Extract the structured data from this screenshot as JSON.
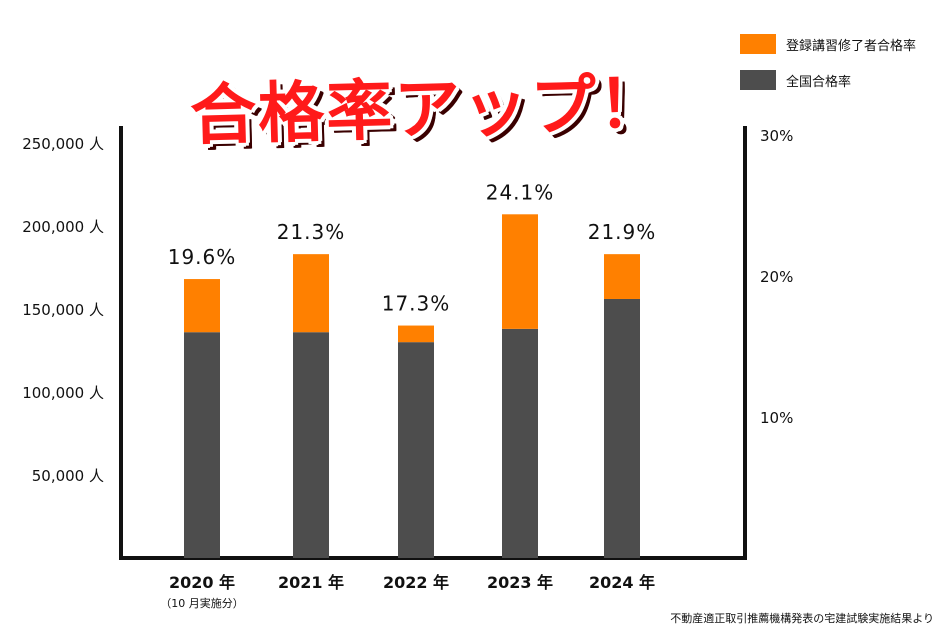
{
  "headline": "合格率アップ！",
  "source_note": "不動産適正取引推薦機構発表の宅建試験実施結果より",
  "colors": {
    "registered": "#ff8000",
    "overall": "#4d4d4d",
    "axis": "#111111"
  },
  "chart_data": {
    "type": "bar",
    "stacked": true,
    "categories": [
      "2020 年",
      "2021 年",
      "2022 年",
      "2023 年",
      "2024 年"
    ],
    "category_notes": [
      "（10 月実施分）",
      "",
      "",
      "",
      ""
    ],
    "series": [
      {
        "name": "全国合格率",
        "values": [
          136000,
          136000,
          130000,
          138000,
          156000
        ]
      },
      {
        "name": "登録講習修了者合格率",
        "values": [
          32000,
          47000,
          10000,
          69000,
          27000
        ]
      }
    ],
    "bar_labels": [
      "19.6%",
      "21.3%",
      "17.3%",
      "24.1%",
      "21.9%"
    ],
    "left_ticks": [
      "50,000 人",
      "100,000 人",
      "150,000 人",
      "200,000 人",
      "250,000 人"
    ],
    "left_tick_values": [
      50000,
      100000,
      150000,
      200000,
      250000
    ],
    "right_ticks": [
      "10%",
      "20%",
      "30%"
    ],
    "right_tick_values": [
      10,
      20,
      30
    ],
    "ylim": [
      0,
      265000
    ],
    "y2lim": [
      0,
      31.2
    ],
    "legend_position": "top-right",
    "grid": false
  }
}
